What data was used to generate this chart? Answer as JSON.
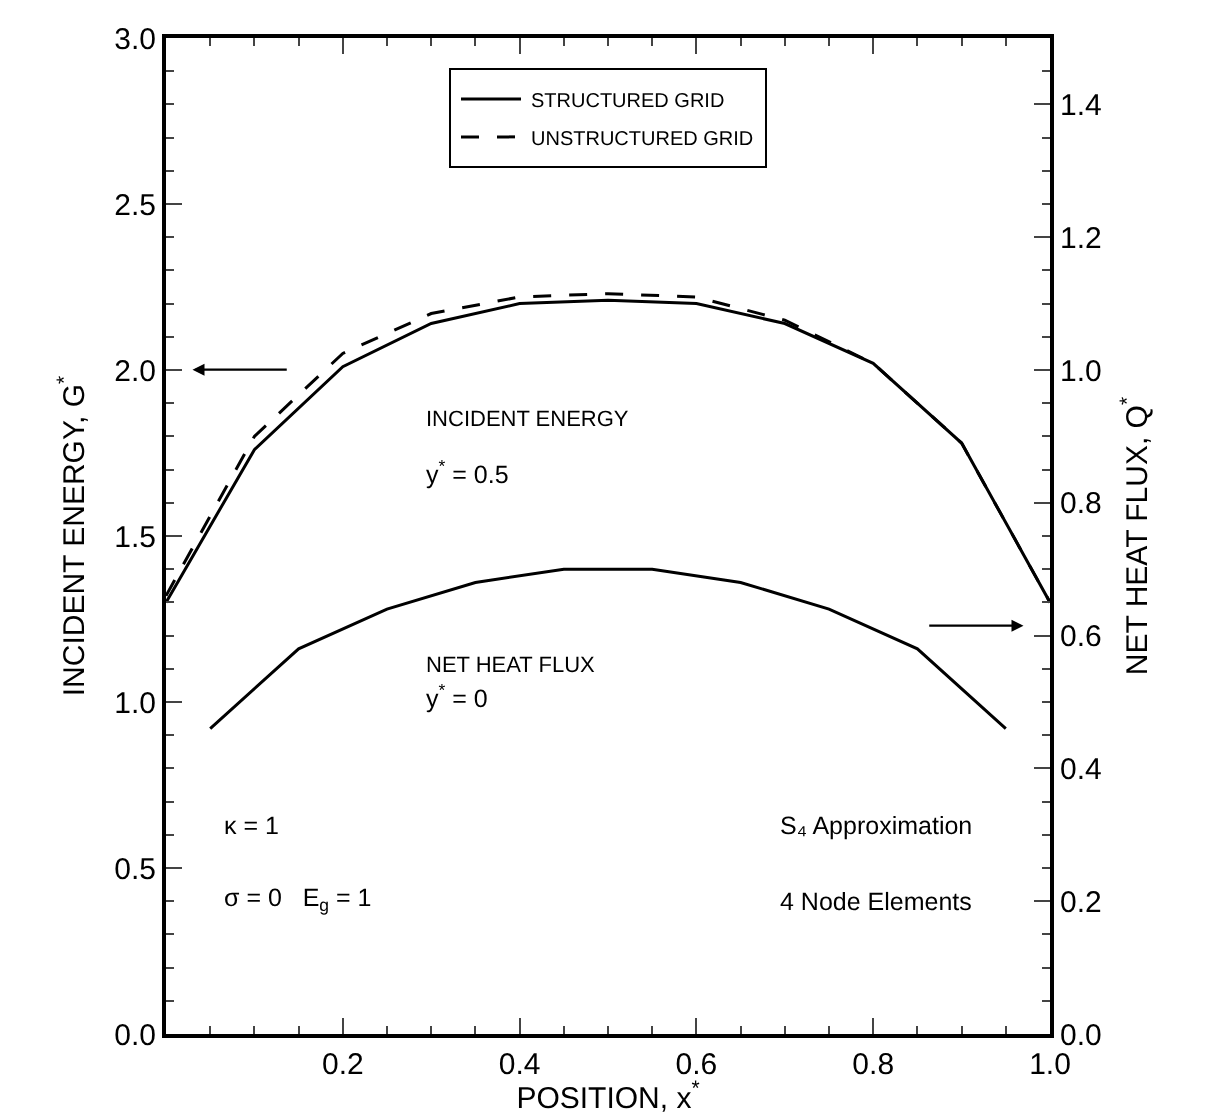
{
  "chart_data": {
    "type": "line",
    "xlabel": "POSITION, x$^{*}$",
    "ylabel": "INCIDENT ENERGY, G$^{*}$",
    "y2label": "NET HEAT FLUX, Q$^{*}$",
    "series": [
      {
        "name": "STRUCTURED GRID",
        "color": "#000000",
        "line_style": "solid",
        "x": [
          0,
          0.1,
          0.2,
          0.3,
          0.4,
          0.5,
          0.6,
          0.7,
          0.8,
          0.9,
          1.0
        ],
        "values": [
          1.3,
          1.76,
          2.01,
          2.14,
          2.2,
          2.21,
          2.2,
          2.14,
          2.02,
          1.78,
          1.3
        ]
      },
      {
        "name": "UNSTRUCTURED GRID",
        "color": "#000000",
        "line_style": "dashed",
        "x": [
          0,
          0.1,
          0.2,
          0.3,
          0.4,
          0.5,
          0.6,
          0.7,
          0.8,
          0.9,
          1.0
        ],
        "values": [
          1.32,
          1.8,
          2.05,
          2.17,
          2.22,
          2.23,
          2.22,
          2.15,
          2.02,
          1.78,
          1.3
        ]
      },
      {
        "color": "#000000",
        "line_style": "solid",
        "axis": "y2",
        "x": [
          0.05,
          0.15,
          0.25,
          0.35,
          0.45,
          0.55,
          0.65,
          0.75,
          0.85,
          0.95
        ],
        "values": [
          0.46,
          0.58,
          0.64,
          0.68,
          0.7,
          0.7,
          0.68,
          0.64,
          0.58,
          0.46
        ]
      }
    ],
    "xlim": [
      0,
      1
    ],
    "xticks": [
      0.2,
      0.4,
      0.6,
      0.8,
      {
        "value": 1,
        "label": "1.0"
      }
    ],
    "ylim": [
      0,
      3
    ],
    "yticks": [
      {
        "value": 0,
        "label": "0.0"
      },
      0.5,
      {
        "value": 1,
        "label": "1.0"
      },
      1.5,
      {
        "value": 2,
        "label": "2.0"
      },
      2.5,
      {
        "value": 3,
        "label": "3.0"
      }
    ],
    "y2lim": [
      0,
      1.5
    ],
    "y2ticks": [
      {
        "value": 0,
        "label": "0.0"
      },
      0.2,
      0.4,
      0.6,
      0.8,
      {
        "value": 1,
        "label": "1.0"
      },
      1.2,
      1.4
    ],
    "grid": false,
    "legend": "top",
    "marker": "none",
    "annotations": [
      "INCIDENT ENERGY",
      "y$^{*}$ = 0.5",
      "NET HEAT FLUX",
      "y$^{*}$ = 0",
      "κ = 1",
      "σ = 0   E$_{g}$ = 1",
      "S₄ Approximation",
      "4 Node Elements"
    ]
  }
}
